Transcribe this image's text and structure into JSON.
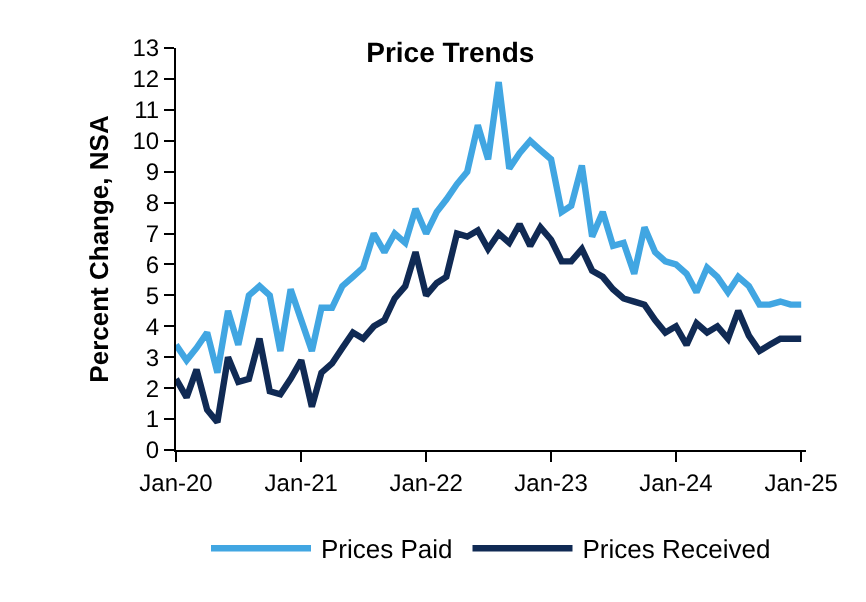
{
  "chart_data": {
    "type": "line",
    "title": "Price Trends",
    "ylabel": "Percent Change, NSA",
    "x": [
      "2020-01",
      "2020-02",
      "2020-03",
      "2020-04",
      "2020-05",
      "2020-06",
      "2020-07",
      "2020-08",
      "2020-09",
      "2020-10",
      "2020-11",
      "2020-12",
      "2021-01",
      "2021-02",
      "2021-03",
      "2021-04",
      "2021-05",
      "2021-06",
      "2021-07",
      "2021-08",
      "2021-09",
      "2021-10",
      "2021-11",
      "2021-12",
      "2022-01",
      "2022-02",
      "2022-03",
      "2022-04",
      "2022-05",
      "2022-06",
      "2022-07",
      "2022-08",
      "2022-09",
      "2022-10",
      "2022-11",
      "2022-12",
      "2023-01",
      "2023-02",
      "2023-03",
      "2023-04",
      "2023-05",
      "2023-06",
      "2023-07",
      "2023-08",
      "2023-09",
      "2023-10",
      "2023-11",
      "2023-12",
      "2024-01",
      "2024-02",
      "2024-03",
      "2024-04",
      "2024-05",
      "2024-06",
      "2024-07",
      "2024-08",
      "2024-09",
      "2024-10",
      "2024-11",
      "2024-12",
      "2025-01"
    ],
    "series": [
      {
        "name": "Prices Paid",
        "color": "#41a6e2",
        "values": [
          3.4,
          2.9,
          3.3,
          3.8,
          2.5,
          4.5,
          3.4,
          5.0,
          5.3,
          5.0,
          3.2,
          5.2,
          4.2,
          3.2,
          4.6,
          4.6,
          5.3,
          5.6,
          5.9,
          7.0,
          6.4,
          7.0,
          6.7,
          7.8,
          7.0,
          7.7,
          8.1,
          8.6,
          9.0,
          10.5,
          9.4,
          11.9,
          9.1,
          9.6,
          10.0,
          9.7,
          9.4,
          7.7,
          7.9,
          9.2,
          6.9,
          7.7,
          6.6,
          6.7,
          5.7,
          7.2,
          6.4,
          6.1,
          6.0,
          5.7,
          5.1,
          5.9,
          5.6,
          5.1,
          5.6,
          5.3,
          4.7,
          4.7,
          4.8,
          4.7,
          4.7
        ]
      },
      {
        "name": "Prices Received",
        "color": "#102a54",
        "values": [
          2.3,
          1.7,
          2.6,
          1.3,
          0.9,
          3.0,
          2.2,
          2.3,
          3.6,
          1.9,
          1.8,
          2.3,
          2.9,
          1.4,
          2.5,
          2.8,
          3.3,
          3.8,
          3.6,
          4.0,
          4.2,
          4.9,
          5.3,
          6.4,
          5.0,
          5.4,
          5.6,
          7.0,
          6.9,
          7.1,
          6.5,
          7.0,
          6.7,
          7.3,
          6.6,
          7.2,
          6.8,
          6.1,
          6.1,
          6.5,
          5.8,
          5.6,
          5.2,
          4.9,
          4.8,
          4.7,
          4.2,
          3.8,
          4.0,
          3.4,
          4.1,
          3.8,
          4.0,
          3.6,
          4.5,
          3.7,
          3.2,
          3.4,
          3.6,
          3.6,
          3.6
        ]
      }
    ],
    "xlim": [
      "2020-01",
      "2025-01-15"
    ],
    "xticks": [
      {
        "value": "2020-01",
        "label": "Jan-20"
      },
      {
        "value": "2021-01",
        "label": "Jan-21"
      },
      {
        "value": "2022-01",
        "label": "Jan-22"
      },
      {
        "value": "2023-01",
        "label": "Jan-23"
      },
      {
        "value": "2024-01",
        "label": "Jan-24"
      },
      {
        "value": "2025-01",
        "label": "Jan-25"
      }
    ],
    "ylim": [
      0,
      13
    ],
    "yticks": [
      0,
      1,
      2,
      3,
      4,
      5,
      6,
      7,
      8,
      9,
      10,
      11,
      12,
      13
    ],
    "legend": "bottom",
    "marker": "none",
    "line_style": "solid"
  }
}
